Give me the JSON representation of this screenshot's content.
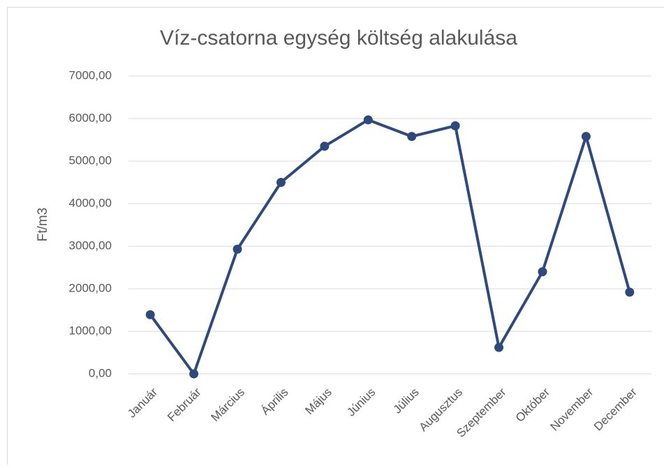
{
  "chart_data": {
    "type": "line",
    "title": "Víz-csatorna egység költség alakulása",
    "y_label": "Ft/m3",
    "categories": [
      "Január",
      "Február",
      "Március",
      "Április",
      "Május",
      "Június",
      "Július",
      "Augusztus",
      "Szeptember",
      "Október",
      "November",
      "December"
    ],
    "series": [
      {
        "name": "Ft/m3",
        "color": "#2e4a7d",
        "values": [
          1390,
          0,
          2930,
          4500,
          5350,
          5970,
          5580,
          5830,
          620,
          2400,
          5580,
          1920
        ]
      }
    ],
    "ylim": [
      0,
      7000
    ],
    "yticks": [
      {
        "value": 0,
        "label": "0,00"
      },
      {
        "value": 1000,
        "label": "1000,00"
      },
      {
        "value": 2000,
        "label": "2000,00"
      },
      {
        "value": 3000,
        "label": "3000,00"
      },
      {
        "value": 4000,
        "label": "4000,00"
      },
      {
        "value": 5000,
        "label": "5000,00"
      },
      {
        "value": 6000,
        "label": "6000,00"
      },
      {
        "value": 7000,
        "label": "7000,00"
      }
    ],
    "grid": true
  }
}
